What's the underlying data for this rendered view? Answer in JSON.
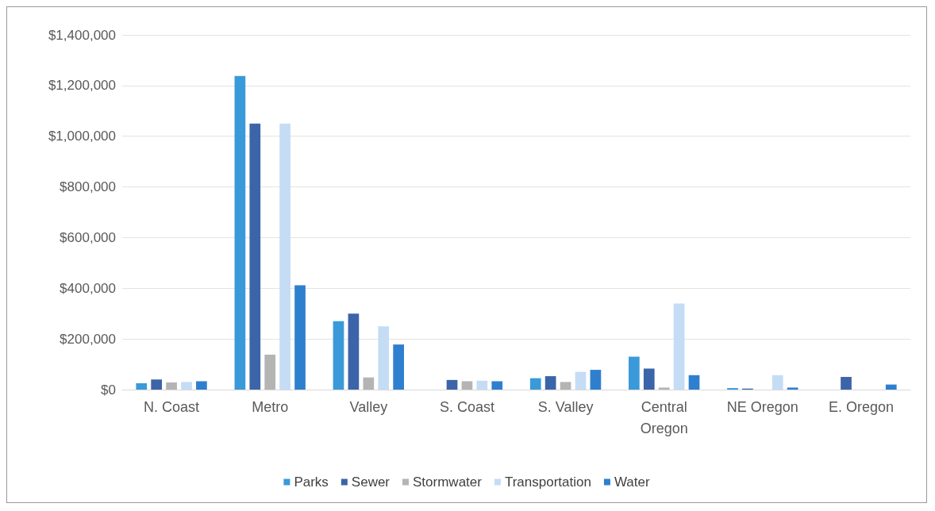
{
  "chart_data": {
    "type": "bar",
    "categories": [
      "N. Coast",
      "Metro",
      "Valley",
      "S. Coast",
      "S. Valley",
      "Central\nOregon",
      "NE Oregon",
      "E. Oregon"
    ],
    "series": [
      {
        "name": "Parks",
        "color": "#3a9ad9",
        "values": [
          25000,
          1238000,
          270000,
          0,
          45000,
          130000,
          6000,
          0
        ]
      },
      {
        "name": "Sewer",
        "color": "#3c64a8",
        "values": [
          40000,
          1050000,
          300000,
          38000,
          53000,
          83000,
          4000,
          50000
        ]
      },
      {
        "name": "Stormwater",
        "color": "#b4b4b4",
        "values": [
          28000,
          138000,
          48000,
          33000,
          30000,
          8000,
          0,
          0
        ]
      },
      {
        "name": "Transportation",
        "color": "#c5dcf5",
        "values": [
          30000,
          1050000,
          250000,
          35000,
          70000,
          340000,
          57000,
          0
        ]
      },
      {
        "name": "Water",
        "color": "#2f7fcf",
        "values": [
          33000,
          412000,
          178000,
          33000,
          78000,
          57000,
          8000,
          20000
        ]
      }
    ],
    "ylim": [
      0,
      1400000
    ],
    "yticks": [
      {
        "value": 0,
        "label": "$0"
      },
      {
        "value": 200000,
        "label": "$200,000"
      },
      {
        "value": 400000,
        "label": "$400,000"
      },
      {
        "value": 600000,
        "label": "$600,000"
      },
      {
        "value": 800000,
        "label": "$800,000"
      },
      {
        "value": 1000000,
        "label": "$1,000,000"
      },
      {
        "value": 1200000,
        "label": "$1,200,000"
      },
      {
        "value": 1400000,
        "label": "$1,400,000"
      }
    ],
    "grid": "y",
    "legend": "bottom"
  }
}
